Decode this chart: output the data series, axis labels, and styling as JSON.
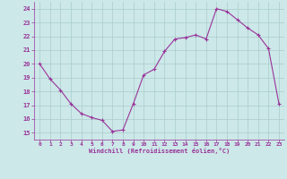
{
  "x": [
    0,
    1,
    2,
    3,
    4,
    5,
    6,
    7,
    8,
    9,
    10,
    11,
    12,
    13,
    14,
    15,
    16,
    17,
    18,
    19,
    20,
    21,
    22,
    23
  ],
  "y": [
    20.0,
    18.9,
    18.1,
    17.1,
    16.4,
    16.1,
    15.9,
    15.1,
    15.2,
    17.1,
    19.2,
    19.6,
    20.9,
    21.8,
    21.9,
    22.1,
    21.8,
    24.0,
    23.8,
    23.2,
    22.6,
    22.1,
    21.1,
    17.1
  ],
  "line_color": "#993399",
  "marker": "+",
  "marker_size": 3,
  "bg_color": "#cce8e8",
  "grid_color": "#aacccc",
  "xlabel": "Windchill (Refroidissement éolien,°C)",
  "xlabel_color": "#993399",
  "tick_color": "#993399",
  "ylim": [
    14.5,
    24.5
  ],
  "xlim": [
    -0.5,
    23.5
  ],
  "yticks": [
    15,
    16,
    17,
    18,
    19,
    20,
    21,
    22,
    23,
    24
  ],
  "xticks": [
    0,
    1,
    2,
    3,
    4,
    5,
    6,
    7,
    8,
    9,
    10,
    11,
    12,
    13,
    14,
    15,
    16,
    17,
    18,
    19,
    20,
    21,
    22,
    23
  ]
}
